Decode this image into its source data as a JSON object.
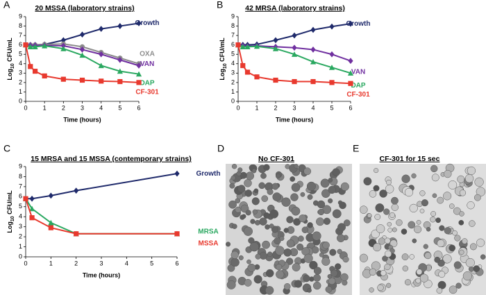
{
  "chart_data": [
    {
      "type": "line",
      "label": "A",
      "title": "20 MSSA (laboratory strains)",
      "x_label": "Time (hours)",
      "y_label": [
        "Log",
        "10",
        " CFU/mL"
      ],
      "x": [
        0,
        0.25,
        0.5,
        1,
        2,
        3,
        4,
        5,
        6
      ],
      "xlim": [
        0,
        6
      ],
      "xticks": [
        0,
        1,
        2,
        3,
        4,
        5,
        6
      ],
      "ylim": [
        0,
        9
      ],
      "yticks": [
        0,
        1,
        2,
        3,
        4,
        5,
        6,
        7,
        8,
        9
      ],
      "series": [
        {
          "name": "Growth",
          "color": "#1f2a6b",
          "marker": "diamond",
          "values": [
            6.0,
            6.0,
            6.0,
            6.05,
            6.5,
            7.1,
            7.7,
            8.0,
            8.3
          ]
        },
        {
          "name": "OXA",
          "color": "#8c8c8c",
          "marker": "circle",
          "values": [
            6.0,
            6.0,
            6.0,
            6.05,
            6.1,
            5.8,
            5.2,
            4.6,
            4.0
          ]
        },
        {
          "name": "VAN",
          "color": "#7030a0",
          "marker": "diamond",
          "values": [
            6.0,
            5.95,
            5.95,
            5.95,
            5.9,
            5.5,
            5.0,
            4.4,
            3.8
          ]
        },
        {
          "name": "DAP",
          "color": "#2aa860",
          "marker": "triangle",
          "values": [
            6.0,
            5.8,
            5.8,
            5.9,
            5.6,
            4.9,
            3.8,
            3.2,
            2.9
          ]
        },
        {
          "name": "CF-301",
          "color": "#e8392e",
          "marker": "square",
          "values": [
            6.0,
            3.7,
            3.2,
            2.7,
            2.35,
            2.25,
            2.15,
            2.1,
            2.0
          ]
        }
      ]
    },
    {
      "type": "line",
      "label": "B",
      "title": "42 MRSA (laboratory strains)",
      "x_label": "Time (hours)",
      "y_label": [
        "Log",
        "10",
        " CFU/mL"
      ],
      "x": [
        0,
        0.25,
        0.5,
        1,
        2,
        3,
        4,
        5,
        6
      ],
      "xlim": [
        0,
        6
      ],
      "xticks": [
        0,
        1,
        2,
        3,
        4,
        5,
        6
      ],
      "ylim": [
        0,
        9
      ],
      "yticks": [
        0,
        1,
        2,
        3,
        4,
        5,
        6,
        7,
        8,
        9
      ],
      "series": [
        {
          "name": "Growth",
          "color": "#1f2a6b",
          "marker": "diamond",
          "values": [
            6.0,
            6.0,
            6.0,
            6.05,
            6.5,
            7.0,
            7.6,
            7.95,
            8.25
          ]
        },
        {
          "name": "VAN",
          "color": "#7030a0",
          "marker": "diamond",
          "values": [
            6.0,
            5.9,
            5.85,
            5.9,
            5.8,
            5.7,
            5.5,
            5.0,
            4.3
          ]
        },
        {
          "name": "DAP",
          "color": "#2aa860",
          "marker": "triangle",
          "values": [
            6.0,
            5.8,
            5.8,
            5.85,
            5.6,
            5.0,
            4.2,
            3.6,
            3.0
          ]
        },
        {
          "name": "CF-301",
          "color": "#e8392e",
          "marker": "square",
          "values": [
            6.0,
            3.8,
            3.1,
            2.6,
            2.25,
            2.1,
            2.1,
            2.0,
            1.9
          ]
        }
      ]
    },
    {
      "type": "line",
      "label": "C",
      "title": "15 MRSA and 15 MSSA (contemporary strains)",
      "x_label": "Time (hours)",
      "y_label": [
        "Log",
        "10",
        " CFU/mL"
      ],
      "x": [
        0,
        0.25,
        1,
        2,
        6
      ],
      "xlim": [
        0,
        6
      ],
      "xticks": [
        0,
        1,
        2,
        3,
        4,
        5,
        6
      ],
      "ylim": [
        0,
        9
      ],
      "yticks": [
        0,
        1,
        2,
        3,
        4,
        5,
        6,
        7,
        8,
        9
      ],
      "series": [
        {
          "name": "Growth",
          "color": "#1f2a6b",
          "marker": "diamond",
          "values": [
            5.8,
            5.8,
            6.1,
            6.6,
            8.3
          ]
        },
        {
          "name": "MRSA",
          "color": "#2aa860",
          "marker": "triangle",
          "values": [
            5.8,
            4.8,
            3.4,
            2.3,
            2.3
          ]
        },
        {
          "name": "MSSA",
          "color": "#e8392e",
          "marker": "square",
          "values": [
            5.8,
            3.9,
            2.9,
            2.3,
            2.3
          ]
        }
      ]
    }
  ],
  "images": [
    {
      "label": "D",
      "title": "No CF-301"
    },
    {
      "label": "E",
      "title": "CF-301 for 15 sec"
    }
  ]
}
